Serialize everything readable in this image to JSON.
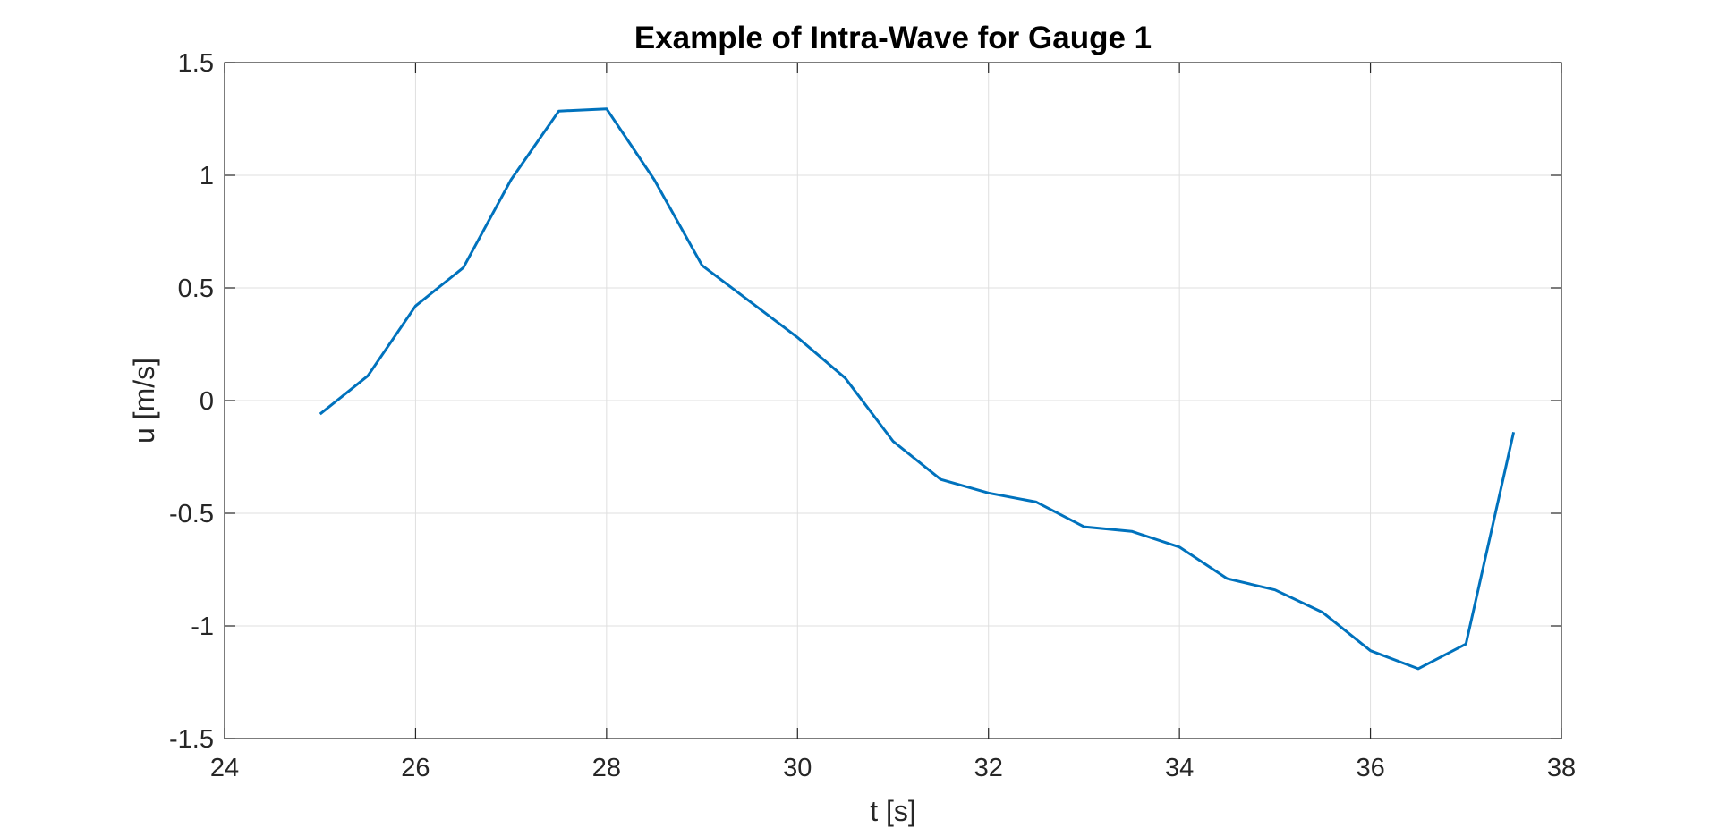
{
  "chart_data": {
    "type": "line",
    "title": "Example of Intra-Wave for Gauge 1",
    "xlabel": "t [s]",
    "ylabel": "u [m/s]",
    "xlim": [
      24,
      38
    ],
    "ylim": [
      -1.5,
      1.5
    ],
    "xticks": [
      "24",
      "26",
      "28",
      "30",
      "32",
      "34",
      "36",
      "38"
    ],
    "yticks": [
      "1.5",
      "1",
      "0.5",
      "0",
      "-0.5",
      "-1",
      "-1.5"
    ],
    "grid": true,
    "series": [
      {
        "color": "#0072BD",
        "x": [
          25.0,
          25.5,
          26.0,
          26.5,
          27.0,
          27.5,
          28.0,
          28.5,
          29.0,
          29.5,
          30.0,
          30.5,
          31.0,
          31.5,
          32.0,
          32.5,
          33.0,
          33.5,
          34.0,
          34.5,
          35.0,
          35.5,
          36.0,
          36.5,
          37.0,
          37.5
        ],
        "y": [
          -0.06,
          0.11,
          0.42,
          0.59,
          0.98,
          1.285,
          1.295,
          0.98,
          0.6,
          0.44,
          0.28,
          0.1,
          -0.18,
          -0.35,
          -0.41,
          -0.45,
          -0.56,
          -0.58,
          -0.65,
          -0.79,
          -0.84,
          -0.94,
          -1.11,
          -1.19,
          -1.08,
          -0.14
        ]
      }
    ]
  }
}
